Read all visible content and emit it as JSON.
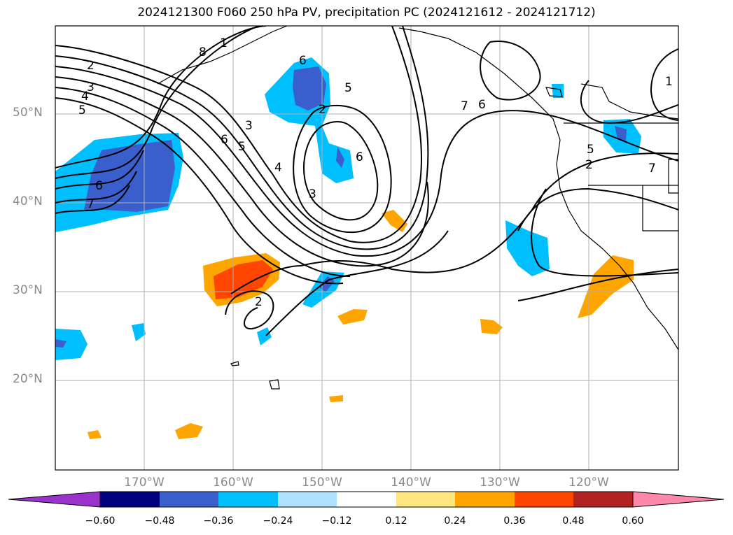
{
  "title": "2024121300 F060 250 hPa PV, precipitation PC (2024121612 - 2024121712)",
  "lat_ticks": [
    "50°N",
    "40°N",
    "30°N",
    "20°N"
  ],
  "lon_ticks": [
    "170°W",
    "160°W",
    "150°W",
    "140°W",
    "130°W",
    "120°W"
  ],
  "extent": {
    "lon": [
      -180,
      -110
    ],
    "lat": [
      10,
      60
    ]
  },
  "colorbar": {
    "labels": [
      "−0.60",
      "−0.48",
      "−0.36",
      "−0.24",
      "−0.12",
      "0.12",
      "0.24",
      "0.36",
      "0.48",
      "0.60"
    ],
    "colors": [
      "#9933cc",
      "#000080",
      "#3a5fcd",
      "#00bfff",
      "#b0e2ff",
      "#ffffff",
      "#ffe680",
      "#ffa500",
      "#ff4500",
      "#b22222",
      "#ff88aa"
    ]
  },
  "pv_contour_labels": [
    "2",
    "3",
    "4",
    "5",
    "6",
    "7",
    "8",
    "1",
    "6",
    "5",
    "2",
    "3",
    "6",
    "5",
    "4",
    "3",
    "6",
    "7",
    "6",
    "5",
    "2",
    "7",
    "1"
  ],
  "colors": {
    "axis_tick": "#8a8a8a",
    "grid": "#b0b0b0",
    "contour": "#000000"
  }
}
